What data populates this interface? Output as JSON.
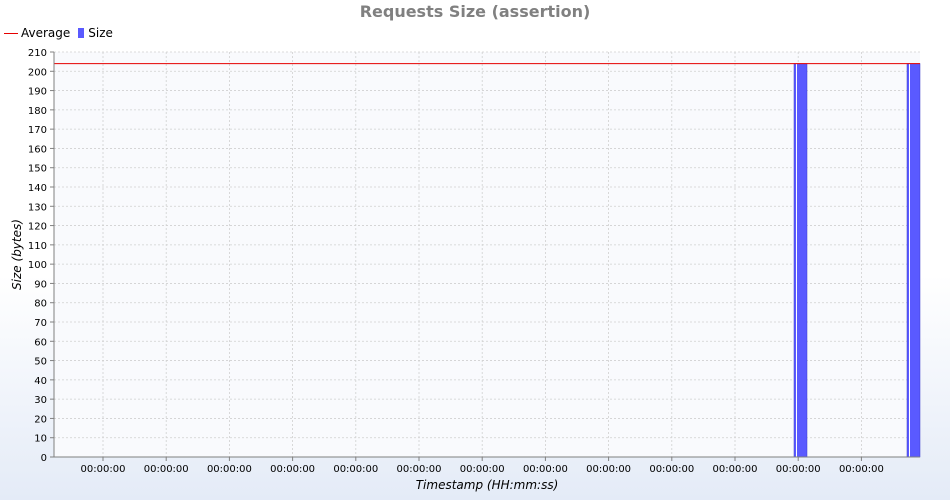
{
  "chart_data": {
    "type": "bar",
    "title": "Requests Size (assertion)",
    "xlabel": "Timestamp (HH:mm:ss)",
    "ylabel": "Size (bytes)",
    "ylim": [
      0,
      210
    ],
    "ytick_step": 10,
    "grid": true,
    "legend_position": "top-left",
    "x_tick_labels": [
      "00:00:00",
      "00:00:00",
      "00:00:00",
      "00:00:00",
      "00:00:00",
      "00:00:00",
      "00:00:00",
      "00:00:00",
      "00:00:00",
      "00:00:00",
      "00:00:00",
      "00:00:00",
      "00:00:00"
    ],
    "series": [
      {
        "name": "Average",
        "kind": "line",
        "color": "#e60000",
        "value": 204
      },
      {
        "name": "Size",
        "kind": "bar",
        "color": "#5a5aff",
        "values": [
          204,
          204
        ]
      }
    ]
  }
}
